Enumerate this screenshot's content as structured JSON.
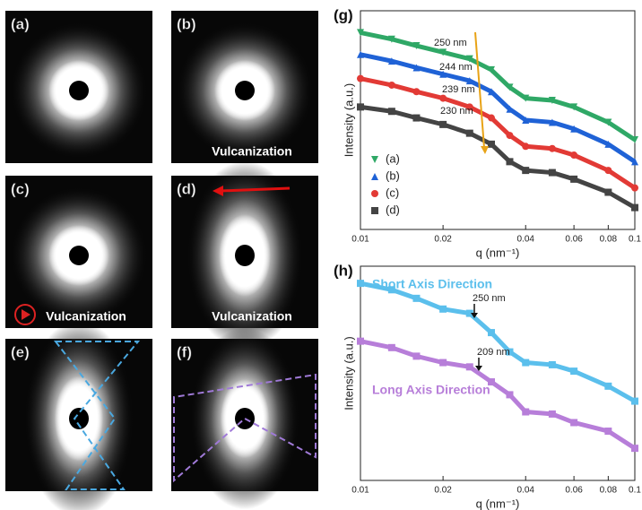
{
  "panels": [
    {
      "label": "(a)"
    },
    {
      "label": "(b)",
      "caption": "Vulcanization"
    },
    {
      "label": "(c)",
      "caption": "Vulcanization"
    },
    {
      "label": "(d)",
      "caption": "Vulcanization"
    },
    {
      "label": "(e)"
    },
    {
      "label": "(f)"
    }
  ],
  "chart_data": [
    {
      "type": "line",
      "title": "(g)",
      "xlabel": "q (nm⁻¹)",
      "ylabel": "Intensity (a.u.)",
      "xscale": "log",
      "x": [
        0.01,
        0.013,
        0.016,
        0.02,
        0.025,
        0.03,
        0.035,
        0.04,
        0.05,
        0.06,
        0.08,
        0.1
      ],
      "xlim": [
        0.01,
        0.1
      ],
      "xticks": [
        0.01,
        0.02,
        0.04,
        0.06,
        0.08,
        0.1
      ],
      "ylim": [
        0,
        10
      ],
      "legend": "lower left",
      "series": [
        {
          "name": "(a)",
          "color": "#2fa866",
          "marker": "v",
          "values": [
            9.0,
            8.7,
            8.4,
            8.1,
            7.8,
            7.3,
            6.5,
            6.0,
            5.9,
            5.6,
            4.9,
            4.1
          ]
        },
        {
          "name": "(b)",
          "color": "#1f62d6",
          "marker": "^",
          "values": [
            8.0,
            7.7,
            7.4,
            7.1,
            6.8,
            6.3,
            5.5,
            5.0,
            4.9,
            4.6,
            3.9,
            3.1
          ]
        },
        {
          "name": "(c)",
          "color": "#e23a35",
          "marker": "o",
          "values": [
            6.9,
            6.6,
            6.3,
            6.0,
            5.6,
            5.1,
            4.3,
            3.8,
            3.7,
            3.4,
            2.7,
            1.9
          ]
        },
        {
          "name": "(d)",
          "color": "#444444",
          "marker": "s",
          "values": [
            5.6,
            5.4,
            5.1,
            4.8,
            4.4,
            3.9,
            3.1,
            2.7,
            2.6,
            2.3,
            1.7,
            1.0
          ]
        }
      ],
      "annotations": [
        "250 nm",
        "244 nm",
        "239 nm",
        "230 nm"
      ]
    },
    {
      "type": "line",
      "title": "(h)",
      "xlabel": "q (nm⁻¹)",
      "ylabel": "Intensity (a.u.)",
      "xscale": "log",
      "x": [
        0.01,
        0.013,
        0.016,
        0.02,
        0.025,
        0.03,
        0.035,
        0.04,
        0.05,
        0.06,
        0.08,
        0.1
      ],
      "xlim": [
        0.01,
        0.1
      ],
      "xticks": [
        0.01,
        0.02,
        0.04,
        0.06,
        0.08,
        0.1
      ],
      "ylim": [
        0,
        10
      ],
      "series": [
        {
          "name": "Short Axis Direction",
          "color": "#5bbfec",
          "marker": "s",
          "values": [
            9.2,
            8.9,
            8.5,
            8.0,
            7.8,
            6.9,
            6.0,
            5.5,
            5.4,
            5.1,
            4.4,
            3.7
          ]
        },
        {
          "name": "Long Axis Direction",
          "color": "#b77ed9",
          "marker": "s",
          "values": [
            6.5,
            6.2,
            5.8,
            5.5,
            5.3,
            4.6,
            4.0,
            3.2,
            3.1,
            2.7,
            2.3,
            1.5
          ]
        }
      ],
      "annotations": [
        "250 nm",
        "209 nm"
      ]
    }
  ]
}
